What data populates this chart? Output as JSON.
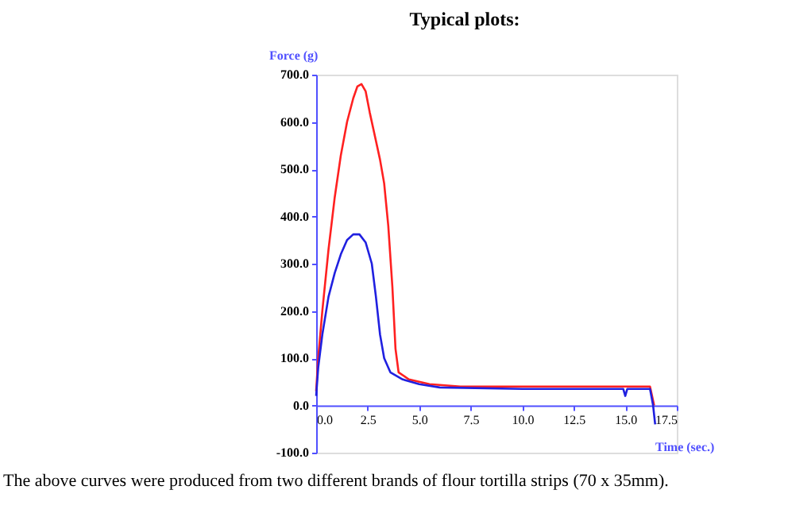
{
  "chart_data": {
    "type": "line",
    "title": "Typical plots:",
    "xlabel": "Time (sec.)",
    "ylabel": "Force (g)",
    "annotations": [
      "The above curves were produced from two different brands of flour tortilla strips (70 x 35mm)."
    ],
    "xlim": [
      0,
      17.5
    ],
    "ylim": [
      -100,
      700
    ],
    "xticks": [
      {
        "value": 0,
        "label": "0.0"
      },
      {
        "value": 2.5,
        "label": "2.5"
      },
      {
        "value": 5,
        "label": "5.0"
      },
      {
        "value": 7.5,
        "label": "7.5"
      },
      {
        "value": 10,
        "label": "10.0"
      },
      {
        "value": 12.5,
        "label": "12.5"
      },
      {
        "value": 15,
        "label": "15.0"
      },
      {
        "value": 17.5,
        "label": "17.5"
      }
    ],
    "yticks": [
      {
        "value": -100,
        "label": "-100.0"
      },
      {
        "value": 0,
        "label": "0.0"
      },
      {
        "value": 100,
        "label": "100.0"
      },
      {
        "value": 200,
        "label": "200.0"
      },
      {
        "value": 300,
        "label": "300.0"
      },
      {
        "value": 400,
        "label": "400.0"
      },
      {
        "value": 500,
        "label": "500.0"
      },
      {
        "value": 600,
        "label": "600.0"
      },
      {
        "value": 700,
        "label": "700.0"
      }
    ],
    "grid": false,
    "marker": "none",
    "line_style": "solid",
    "series": [
      {
        "color": "#ff2020",
        "x": [
          0,
          0.1,
          0.3,
          0.6,
          0.9,
          1.2,
          1.5,
          1.8,
          2.0,
          2.2,
          2.4,
          2.6,
          2.9,
          3.1,
          3.3,
          3.5,
          3.7,
          3.85,
          4.0,
          4.5,
          5.5,
          7,
          10,
          13,
          16.2,
          16.3,
          16.4
        ],
        "values": [
          30,
          100,
          200,
          330,
          440,
          530,
          600,
          650,
          675,
          680,
          665,
          620,
          560,
          520,
          470,
          380,
          250,
          120,
          70,
          55,
          45,
          40,
          40,
          40,
          40,
          20,
          0
        ]
      },
      {
        "color": "#2020e0",
        "x": [
          0,
          0.1,
          0.3,
          0.6,
          0.9,
          1.2,
          1.5,
          1.8,
          2.1,
          2.4,
          2.7,
          2.9,
          3.1,
          3.3,
          3.6,
          4.2,
          5,
          6,
          10,
          14.9,
          15.0,
          15.1,
          16.2,
          16.35,
          16.45
        ],
        "values": [
          20,
          80,
          150,
          230,
          280,
          320,
          350,
          362,
          362,
          345,
          300,
          230,
          150,
          100,
          70,
          55,
          45,
          38,
          35,
          35,
          20,
          35,
          35,
          0,
          -40
        ]
      }
    ]
  }
}
